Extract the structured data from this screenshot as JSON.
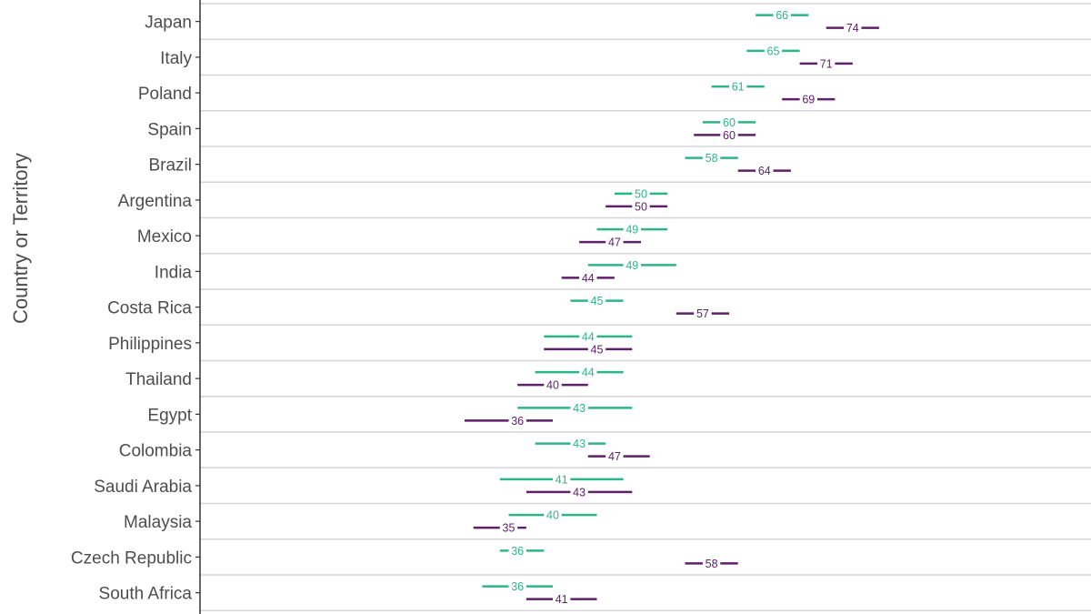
{
  "chart_data": {
    "type": "dot-range",
    "ylabel": "Country or Territory",
    "xlim": [
      0,
      100
    ],
    "grid": true,
    "colors": {
      "series_a": "#2db58a",
      "series_b": "#5e2068",
      "grid": "#d6d6d6",
      "axis": "#333333",
      "text": "#4d4d4d"
    },
    "categories": [
      "Japan",
      "Italy",
      "Poland",
      "Spain",
      "Brazil",
      "Argentina",
      "Mexico",
      "India",
      "Costa Rica",
      "Philippines",
      "Thailand",
      "Egypt",
      "Colombia",
      "Saudi Arabia",
      "Malaysia",
      "Czech Republic",
      "South Africa"
    ],
    "series": [
      {
        "color": "#2db58a",
        "values": [
          66,
          65,
          61,
          60,
          58,
          50,
          49,
          49,
          45,
          44,
          44,
          43,
          43,
          41,
          40,
          36,
          36
        ],
        "ranges": [
          [
            63,
            69
          ],
          [
            62,
            68
          ],
          [
            58,
            64
          ],
          [
            57,
            63
          ],
          [
            55,
            61
          ],
          [
            47,
            53
          ],
          [
            45,
            53
          ],
          [
            44,
            54
          ],
          [
            42,
            48
          ],
          [
            39,
            49
          ],
          [
            38,
            48
          ],
          [
            36,
            49
          ],
          [
            38,
            46
          ],
          [
            34,
            48
          ],
          [
            35,
            45
          ],
          [
            34,
            39
          ],
          [
            32,
            40
          ]
        ]
      },
      {
        "color": "#5e2068",
        "values": [
          74,
          71,
          69,
          60,
          64,
          50,
          47,
          44,
          57,
          45,
          40,
          36,
          47,
          43,
          35,
          58,
          41
        ],
        "ranges": [
          [
            71,
            77
          ],
          [
            68,
            74
          ],
          [
            66,
            72
          ],
          [
            56,
            63
          ],
          [
            61,
            67
          ],
          [
            46,
            53
          ],
          [
            43,
            50
          ],
          [
            41,
            47
          ],
          [
            54,
            60
          ],
          [
            39,
            49
          ],
          [
            36,
            44
          ],
          [
            30,
            40
          ],
          [
            44,
            51
          ],
          [
            37,
            49
          ],
          [
            31,
            37
          ],
          [
            55,
            61
          ],
          [
            37,
            45
          ]
        ]
      }
    ]
  }
}
